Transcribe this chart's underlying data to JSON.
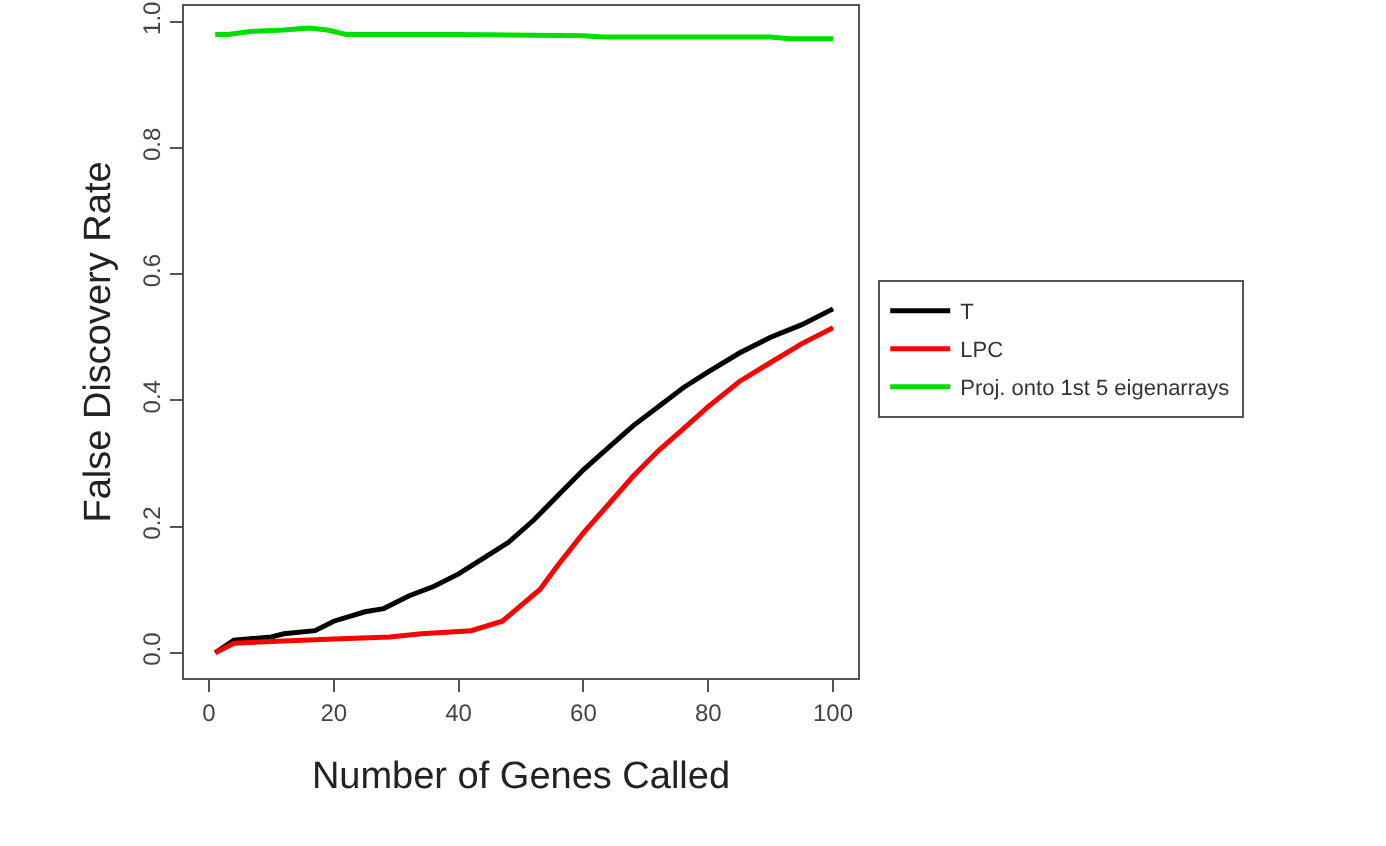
{
  "chart_data": {
    "type": "line",
    "xlabel": "Number of Genes Called",
    "ylabel": "False Discovery Rate",
    "xlim": [
      -4,
      104
    ],
    "ylim": [
      -0.04,
      1.025
    ],
    "xticks": [
      0,
      20,
      40,
      60,
      80,
      100
    ],
    "yticks": [
      {
        "value": 0,
        "label": "0.0"
      },
      {
        "value": 0.2,
        "label": "0.2"
      },
      {
        "value": 0.4,
        "label": "0.4"
      },
      {
        "value": 0.6,
        "label": "0.6"
      },
      {
        "value": 0.8,
        "label": "0.8"
      },
      {
        "value": 1,
        "label": "1.0"
      }
    ],
    "legend": "right",
    "marker": "none",
    "line_style": "solid",
    "series": [
      {
        "name": "T",
        "color": "#000000",
        "x": [
          1,
          4,
          10,
          12,
          17,
          20,
          25,
          28,
          32,
          36,
          40,
          44,
          48,
          52,
          56,
          60,
          64,
          68,
          72,
          76,
          80,
          85,
          90,
          95,
          100
        ],
        "values": [
          0,
          0.02,
          0.025,
          0.03,
          0.035,
          0.05,
          0.065,
          0.07,
          0.09,
          0.105,
          0.125,
          0.15,
          0.175,
          0.21,
          0.25,
          0.29,
          0.325,
          0.36,
          0.39,
          0.42,
          0.445,
          0.475,
          0.5,
          0.52,
          0.545
        ]
      },
      {
        "name": "LPC",
        "color": "#ff0000",
        "x": [
          1,
          4,
          10,
          20,
          29,
          34,
          42,
          47,
          50,
          53,
          56,
          60,
          64,
          68,
          72,
          76,
          80,
          85,
          90,
          95,
          100
        ],
        "values": [
          0,
          0.015,
          0.018,
          0.022,
          0.025,
          0.03,
          0.035,
          0.05,
          0.075,
          0.1,
          0.14,
          0.19,
          0.235,
          0.28,
          0.32,
          0.355,
          0.39,
          0.43,
          0.46,
          0.49,
          0.515
        ]
      },
      {
        "name": "Proj. onto 1st 5 eigenarrays",
        "color": "#00dd00",
        "x": [
          1,
          3,
          7,
          12,
          16,
          19,
          22,
          40,
          60,
          63,
          90,
          93,
          100
        ],
        "values": [
          0.98,
          0.98,
          0.985,
          0.987,
          0.99,
          0.987,
          0.98,
          0.98,
          0.978,
          0.976,
          0.976,
          0.973,
          0.973
        ]
      }
    ]
  }
}
